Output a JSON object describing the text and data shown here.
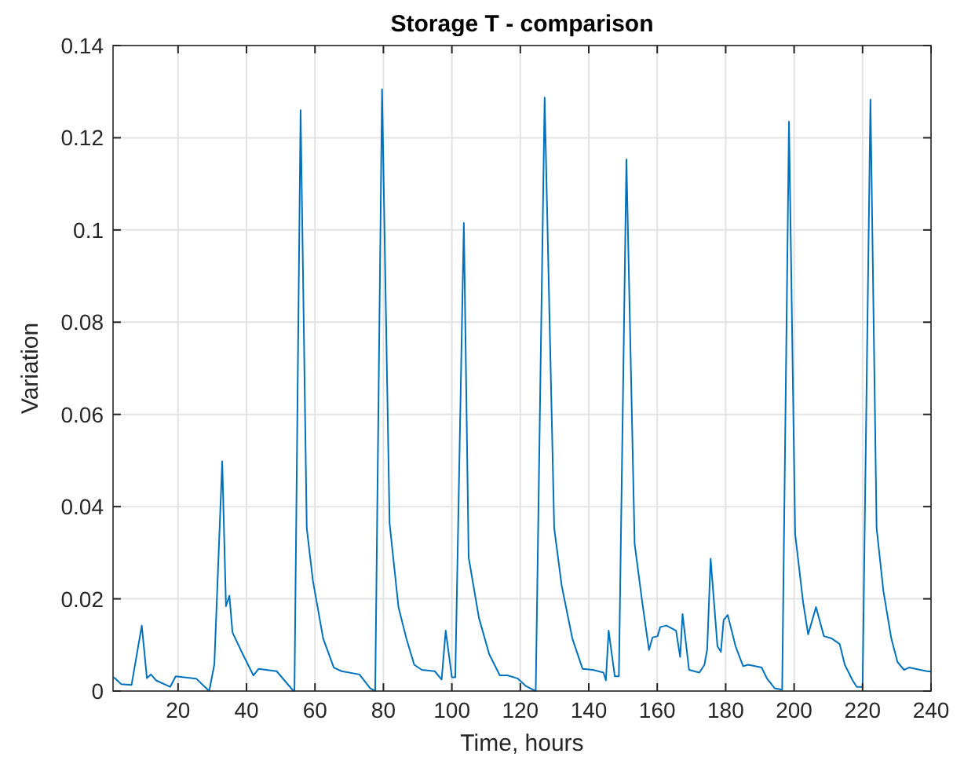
{
  "chart_data": {
    "type": "line",
    "title": "Storage T - comparison",
    "xlabel": "Time, hours",
    "ylabel": "Variation",
    "xlim": [
      1,
      240
    ],
    "xticks": [
      20,
      40,
      60,
      80,
      100,
      120,
      140,
      160,
      180,
      200,
      220,
      240
    ],
    "ylim": [
      0,
      0.14
    ],
    "yticks": [
      0,
      0.02,
      0.04,
      0.06,
      0.08,
      0.1,
      0.12,
      0.14
    ],
    "grid": true,
    "series": [
      {
        "color": "#0072bd",
        "x": [
          1,
          1.5,
          3.4,
          6.4,
          9.4,
          10.9,
          12.1,
          13.6,
          17.7,
          19.3,
          25.3,
          29.1,
          30.6,
          32.9,
          34,
          35,
          35.9,
          38.9,
          42,
          43.5,
          48.8,
          53.4,
          54,
          55.8,
          57.6,
          59.4,
          62.4,
          65.5,
          67.8,
          73,
          76.1,
          77.6,
          79.6,
          81.8,
          84.4,
          86.7,
          89,
          91.2,
          95,
          97,
          98.2,
          100,
          101,
          103.5,
          104.9,
          107.9,
          110.9,
          114,
          116.2,
          119.3,
          121.6,
          124.5,
          127.1,
          129.9,
          132.1,
          135.2,
          138.2,
          141.2,
          144.3,
          145,
          145.8,
          147.6,
          148.8,
          151,
          153.4,
          155.6,
          157.6,
          158.6,
          160.1,
          160.9,
          162.7,
          165.5,
          166.7,
          167.4,
          169.3,
          172.3,
          173.8,
          174.6,
          175.6,
          177.6,
          178.6,
          179.4,
          180.6,
          182.9,
          185.1,
          186.6,
          190.5,
          192,
          194.3,
          196.5,
          198.5,
          200.3,
          202.6,
          204.1,
          206.4,
          208.7,
          211,
          213.3,
          214.8,
          217.1,
          218.3,
          220,
          222.3,
          224.1,
          226.1,
          228.4,
          230.2,
          232.1,
          233.6,
          238.8,
          240
        ],
        "values": [
          0.003,
          0.0028,
          0.0015,
          0.0013,
          0.0142,
          0.0028,
          0.0036,
          0.0023,
          0.0009,
          0.0032,
          0.0027,
          0,
          0.0058,
          0.0498,
          0.0184,
          0.0207,
          0.0127,
          0.008,
          0.0034,
          0.0048,
          0.0043,
          0.0003,
          0,
          0.126,
          0.0353,
          0.0239,
          0.0114,
          0.0051,
          0.0043,
          0.0036,
          0.0006,
          0,
          0.1305,
          0.0364,
          0.0182,
          0.0114,
          0.0057,
          0.0046,
          0.0043,
          0.0025,
          0.0131,
          0.003,
          0.003,
          0.1015,
          0.029,
          0.0159,
          0.008,
          0.0034,
          0.0034,
          0.0027,
          0.0011,
          0,
          0.1287,
          0.0353,
          0.0228,
          0.0114,
          0.0048,
          0.0046,
          0.004,
          0.0023,
          0.0131,
          0.0032,
          0.0032,
          0.1153,
          0.0319,
          0.0194,
          0.0089,
          0.0116,
          0.0119,
          0.0139,
          0.0142,
          0.0131,
          0.0074,
          0.0167,
          0.0046,
          0.004,
          0.0057,
          0.0091,
          0.0287,
          0.0097,
          0.0085,
          0.0154,
          0.0165,
          0.0097,
          0.0054,
          0.0057,
          0.0051,
          0.0028,
          0.0006,
          0.0003,
          0.1235,
          0.0341,
          0.0194,
          0.0123,
          0.0182,
          0.0119,
          0.0114,
          0.0102,
          0.0057,
          0.0023,
          0.0009,
          0.0009,
          0.1283,
          0.0353,
          0.0216,
          0.0114,
          0.0063,
          0.0046,
          0.0051,
          0.0043,
          0.0042
        ]
      }
    ]
  }
}
